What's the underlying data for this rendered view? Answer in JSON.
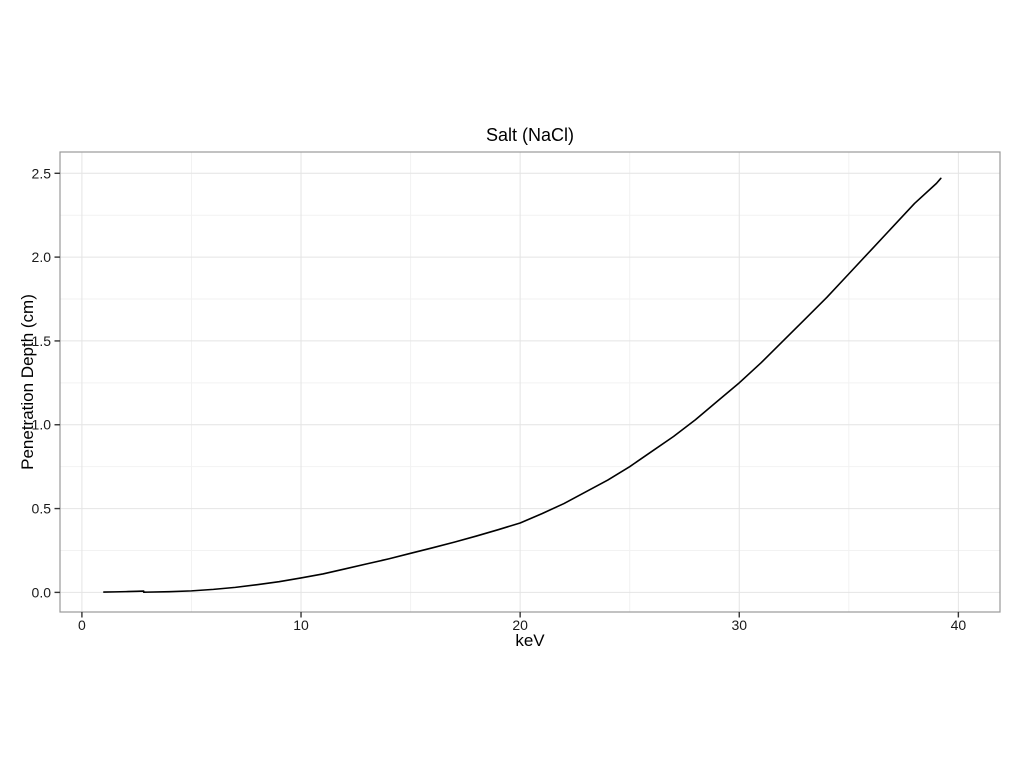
{
  "colors": {
    "background": "#ffffff",
    "panel_background": "#ffffff",
    "panel_border": "#999999",
    "grid_major": "#e4e4e4",
    "grid_minor": "#f2f2f2",
    "tick": "#333333",
    "text": "#1a1a1a",
    "line": "#000000"
  },
  "chart_data": {
    "type": "line",
    "title": "Salt (NaCl)",
    "xlabel": "keV",
    "ylabel": "Penetration Depth (cm)",
    "xlim": [
      -1.0,
      41.9
    ],
    "ylim": [
      -0.117,
      2.627
    ],
    "grid": true,
    "legend": false,
    "x_ticks": [
      {
        "v": 0,
        "label": "0"
      },
      {
        "v": 10,
        "label": "10"
      },
      {
        "v": 20,
        "label": "20"
      },
      {
        "v": 30,
        "label": "30"
      },
      {
        "v": 40,
        "label": "40"
      }
    ],
    "x_minor": [
      5,
      15,
      25,
      35
    ],
    "y_ticks": [
      {
        "v": 0.0,
        "label": "0.0"
      },
      {
        "v": 0.5,
        "label": "0.5"
      },
      {
        "v": 1.0,
        "label": "1.0"
      },
      {
        "v": 1.5,
        "label": "1.5"
      },
      {
        "v": 2.0,
        "label": "2.0"
      },
      {
        "v": 2.5,
        "label": "2.5"
      }
    ],
    "y_minor": [
      0.25,
      0.75,
      1.25,
      1.75,
      2.25
    ],
    "series": [
      {
        "name": "penetration-depth",
        "color": "#000000",
        "points": [
          [
            1,
            0.002
          ],
          [
            1.5,
            0.003
          ],
          [
            2,
            0.0045
          ],
          [
            2.5,
            0.0065
          ],
          [
            2.82,
            0.008
          ],
          [
            2.822,
            0.0012
          ],
          [
            3,
            0.0015
          ],
          [
            4,
            0.004
          ],
          [
            5,
            0.009
          ],
          [
            6,
            0.018
          ],
          [
            7,
            0.03
          ],
          [
            8,
            0.046
          ],
          [
            9,
            0.064
          ],
          [
            10,
            0.086
          ],
          [
            11,
            0.11
          ],
          [
            12,
            0.14
          ],
          [
            13,
            0.17
          ],
          [
            14,
            0.2
          ],
          [
            15,
            0.233
          ],
          [
            16,
            0.266
          ],
          [
            17,
            0.3
          ],
          [
            18,
            0.336
          ],
          [
            19,
            0.374
          ],
          [
            20,
            0.414
          ],
          [
            21,
            0.47
          ],
          [
            22,
            0.53
          ],
          [
            23,
            0.6
          ],
          [
            24,
            0.67
          ],
          [
            25,
            0.75
          ],
          [
            26,
            0.84
          ],
          [
            27,
            0.93
          ],
          [
            28,
            1.03
          ],
          [
            29,
            1.14
          ],
          [
            30,
            1.25
          ],
          [
            31,
            1.37
          ],
          [
            32,
            1.5
          ],
          [
            33,
            1.63
          ],
          [
            34,
            1.76
          ],
          [
            35,
            1.9
          ],
          [
            36,
            2.04
          ],
          [
            37,
            2.18
          ],
          [
            38,
            2.32
          ],
          [
            39,
            2.44
          ],
          [
            39.2,
            2.47
          ]
        ]
      }
    ]
  }
}
